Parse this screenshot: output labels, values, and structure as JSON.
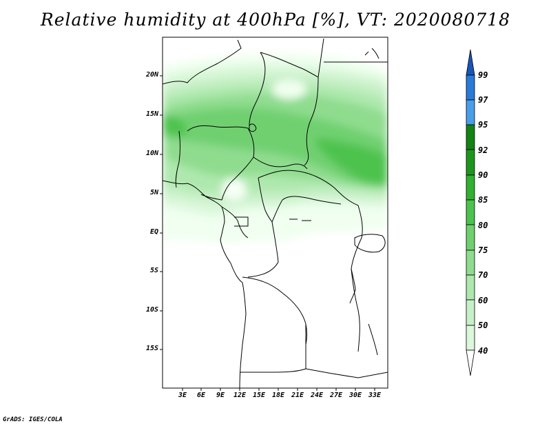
{
  "title": "Relative humidity at 400hPa [%], VT: 2020080718",
  "credit": "GrADS: IGES/COLA",
  "lat_labels": [
    "20N",
    "15N",
    "10N",
    "5N",
    "EQ",
    "5S",
    "10S",
    "15S"
  ],
  "lon_labels": [
    "3E",
    "6E",
    "9E",
    "12E",
    "15E",
    "18E",
    "21E",
    "24E",
    "27E",
    "30E",
    "33E"
  ],
  "colorbar": {
    "labels": [
      "40",
      "50",
      "60",
      "70",
      "75",
      "80",
      "85",
      "90",
      "92",
      "95",
      "97",
      "99"
    ],
    "colors": [
      "#f0fff0",
      "#dcf8dc",
      "#c8f0c8",
      "#aee8ae",
      "#8fdc8f",
      "#70d070",
      "#4ec24e",
      "#32b032",
      "#1e961e",
      "#148214",
      "#4a9ee8",
      "#2a7ad8",
      "#1656b8"
    ]
  }
}
